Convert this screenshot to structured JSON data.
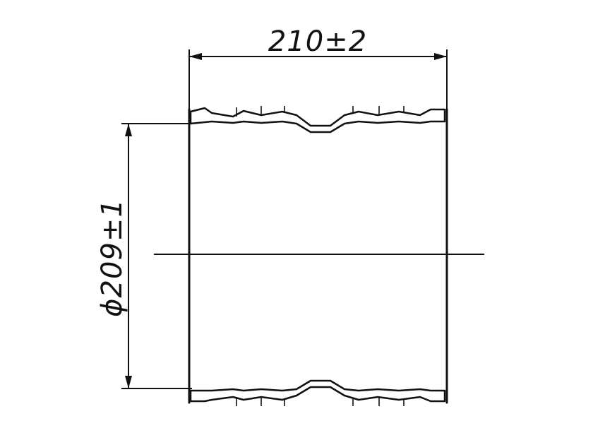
{
  "drawing": {
    "length_label": "210±2",
    "diameter_label": "ϕ209±1"
  }
}
